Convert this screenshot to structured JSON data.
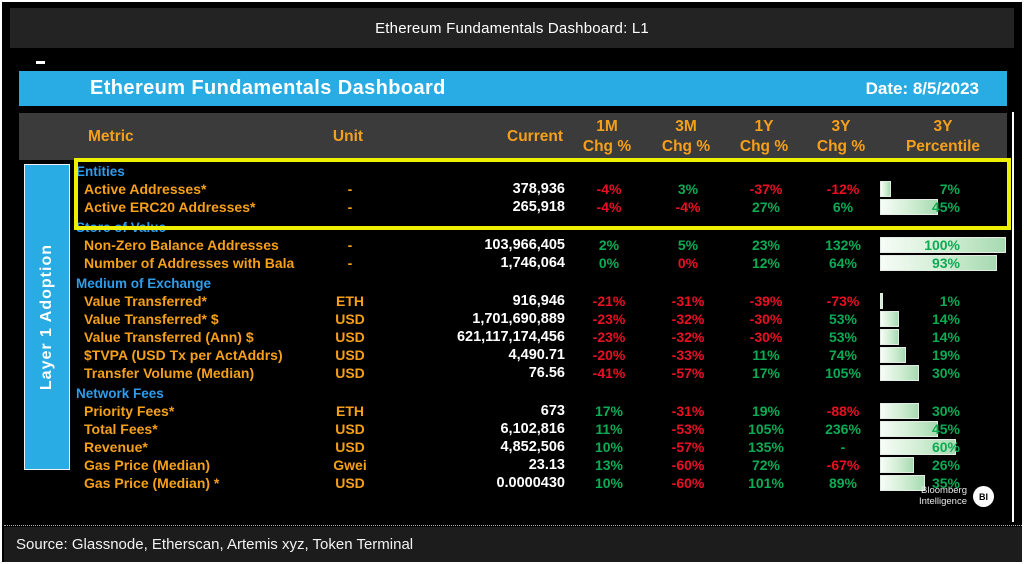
{
  "window_title": "Ethereum Fundamentals Dashboard: L1",
  "banner": {
    "title": "Ethereum Fundamentals Dashboard",
    "date": "Date: 8/5/2023"
  },
  "sidebar_label": "Layer 1 Adoption",
  "columns": {
    "metric": "Metric",
    "unit": "Unit",
    "current": "Current",
    "chg": [
      {
        "top": "1M",
        "bottom": "Chg %"
      },
      {
        "top": "3M",
        "bottom": "Chg %"
      },
      {
        "top": "1Y",
        "bottom": "Chg %"
      },
      {
        "top": "3Y",
        "bottom": "Chg %"
      }
    ],
    "percentile": {
      "top": "3Y",
      "bottom": "Percentile"
    }
  },
  "highlighted_section": "Entities",
  "sections": [
    {
      "name": "Entities",
      "rows": [
        {
          "metric": "Active Addresses*",
          "unit": "-",
          "current": "378,936",
          "chg": [
            [
              "-4%",
              "down"
            ],
            [
              "3%",
              "up"
            ],
            [
              "-37%",
              "down"
            ],
            [
              "-12%",
              "down"
            ]
          ],
          "percentile": 7,
          "percentile_label": "7%"
        },
        {
          "metric": "Active ERC20 Addresses*",
          "unit": "-",
          "current": "265,918",
          "chg": [
            [
              "-4%",
              "down"
            ],
            [
              "-4%",
              "down"
            ],
            [
              "27%",
              "up"
            ],
            [
              "6%",
              "up"
            ]
          ],
          "percentile": 45,
          "percentile_label": "45%"
        }
      ]
    },
    {
      "name": "Store of Value",
      "rows": [
        {
          "metric": "Non-Zero Balance Addresses",
          "unit": "-",
          "current": "103,966,405",
          "chg": [
            [
              "2%",
              "up"
            ],
            [
              "5%",
              "up"
            ],
            [
              "23%",
              "up"
            ],
            [
              "132%",
              "up"
            ]
          ],
          "percentile": 100,
          "percentile_label": "100%"
        },
        {
          "metric": "Number of Addresses with Bala",
          "unit": "-",
          "current": "1,746,064",
          "chg": [
            [
              "0%",
              "up"
            ],
            [
              "0%",
              "down"
            ],
            [
              "12%",
              "up"
            ],
            [
              "64%",
              "up"
            ]
          ],
          "percentile": 93,
          "percentile_label": "93%"
        }
      ]
    },
    {
      "name": "Medium of Exchange",
      "rows": [
        {
          "metric": "Value Transferred*",
          "unit": "ETH",
          "current": "916,946",
          "chg": [
            [
              "-21%",
              "down"
            ],
            [
              "-31%",
              "down"
            ],
            [
              "-39%",
              "down"
            ],
            [
              "-73%",
              "down"
            ]
          ],
          "percentile": 1,
          "percentile_label": "1%"
        },
        {
          "metric": "Value Transferred* $",
          "unit": "USD",
          "current": "1,701,690,889",
          "chg": [
            [
              "-23%",
              "down"
            ],
            [
              "-32%",
              "down"
            ],
            [
              "-30%",
              "down"
            ],
            [
              "53%",
              "up"
            ]
          ],
          "percentile": 14,
          "percentile_label": "14%"
        },
        {
          "metric": "Value Transferred (Ann) $",
          "unit": "USD",
          "current": "621,117,174,456",
          "chg": [
            [
              "-23%",
              "down"
            ],
            [
              "-32%",
              "down"
            ],
            [
              "-30%",
              "down"
            ],
            [
              "53%",
              "up"
            ]
          ],
          "percentile": 14,
          "percentile_label": "14%"
        },
        {
          "metric": "$TVPA (USD Tx per ActAddrs)",
          "unit": "USD",
          "current": "4,490.71",
          "chg": [
            [
              "-20%",
              "down"
            ],
            [
              "-33%",
              "down"
            ],
            [
              "11%",
              "up"
            ],
            [
              "74%",
              "up"
            ]
          ],
          "percentile": 19,
          "percentile_label": "19%"
        },
        {
          "metric": "Transfer Volume (Median)",
          "unit": "USD",
          "current": "76.56",
          "chg": [
            [
              "-41%",
              "down"
            ],
            [
              "-57%",
              "down"
            ],
            [
              "17%",
              "up"
            ],
            [
              "105%",
              "up"
            ]
          ],
          "percentile": 30,
          "percentile_label": "30%"
        }
      ]
    },
    {
      "name": "Network Fees",
      "rows": [
        {
          "metric": "Priority Fees*",
          "unit": "ETH",
          "current": "673",
          "chg": [
            [
              "17%",
              "up"
            ],
            [
              "-31%",
              "down"
            ],
            [
              "19%",
              "up"
            ],
            [
              "-88%",
              "down"
            ]
          ],
          "percentile": 30,
          "percentile_label": "30%"
        },
        {
          "metric": "Total Fees*",
          "unit": "USD",
          "current": "6,102,816",
          "chg": [
            [
              "11%",
              "up"
            ],
            [
              "-53%",
              "down"
            ],
            [
              "105%",
              "up"
            ],
            [
              "236%",
              "up"
            ]
          ],
          "percentile": 45,
          "percentile_label": "45%"
        },
        {
          "metric": "Revenue*",
          "unit": "USD",
          "current": "4,852,506",
          "chg": [
            [
              "10%",
              "up"
            ],
            [
              "-57%",
              "down"
            ],
            [
              "135%",
              "up"
            ],
            [
              "-",
              "up"
            ]
          ],
          "percentile": 60,
          "percentile_label": "60%"
        },
        {
          "metric": "Gas Price (Median)",
          "unit": "Gwei",
          "current": "23.13",
          "chg": [
            [
              "13%",
              "up"
            ],
            [
              "-60%",
              "down"
            ],
            [
              "72%",
              "up"
            ],
            [
              "-67%",
              "down"
            ]
          ],
          "percentile": 26,
          "percentile_label": "26%"
        },
        {
          "metric": "Gas Price (Median) *",
          "unit": "USD",
          "current": "0.0000430",
          "chg": [
            [
              "10%",
              "up"
            ],
            [
              "-60%",
              "down"
            ],
            [
              "101%",
              "up"
            ],
            [
              "89%",
              "up"
            ]
          ],
          "percentile": 35,
          "percentile_label": "35%"
        }
      ]
    }
  ],
  "branding": {
    "line1": "Bloomberg",
    "line2": "Intelligence",
    "badge": "BI"
  },
  "footer": {
    "source": "Source: Glassnode, Etherscan, Artemis xyz, Token Terminal"
  },
  "colors": {
    "up": "#0cab54",
    "down": "#e81123",
    "accent_orange": "#f6a01a",
    "accent_blue": "#2f9ceb",
    "cyan": "#29ace3",
    "highlight_yellow": "#eef000"
  }
}
